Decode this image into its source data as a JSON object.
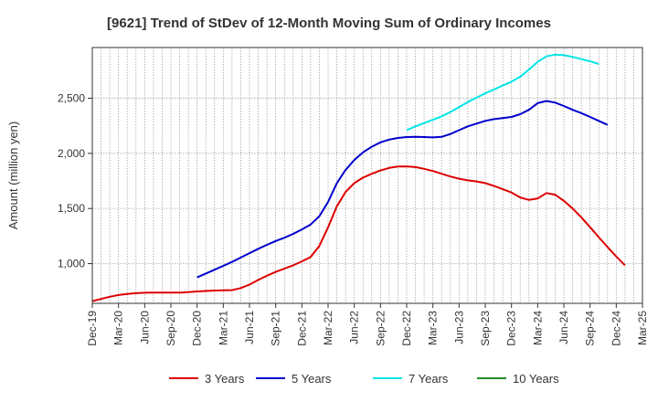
{
  "chart_data": {
    "type": "line",
    "title": "[9621]  Trend of StDev of 12-Month Moving Sum of Ordinary Incomes",
    "ylabel": "Amount (million yen)",
    "xlabel": "",
    "ylim": [
      640,
      2960
    ],
    "yticks": [
      1000,
      1500,
      2000,
      2500
    ],
    "ytick_labels": [
      "1,000",
      "1,500",
      "2,000",
      "2,500"
    ],
    "xtick_labels": [
      "Dec-19",
      "Mar-20",
      "Jun-20",
      "Sep-20",
      "Dec-20",
      "Mar-21",
      "Jun-21",
      "Sep-21",
      "Dec-21",
      "Mar-22",
      "Jun-22",
      "Sep-22",
      "Dec-22",
      "Mar-23",
      "Jun-23",
      "Sep-23",
      "Dec-23",
      "Mar-24",
      "Jun-24",
      "Sep-24",
      "Dec-24",
      "Mar-25"
    ],
    "grid": true,
    "legend_position": "bottom",
    "series": [
      {
        "name": "3 Years",
        "color": "#dd0000",
        "start_index": 0,
        "values": [
          660,
          680,
          700,
          715,
          725,
          732,
          736,
          738,
          738,
          737,
          738,
          742,
          748,
          752,
          756,
          758,
          760,
          778,
          810,
          852,
          890,
          925,
          955,
          985,
          1020,
          1060,
          1160,
          1330,
          1520,
          1650,
          1730,
          1780,
          1815,
          1845,
          1868,
          1880,
          1882,
          1875,
          1860,
          1840,
          1815,
          1790,
          1770,
          1755,
          1745,
          1730,
          1705,
          1675,
          1645,
          1600,
          1578,
          1590,
          1640,
          1625,
          1570,
          1500,
          1420,
          1330,
          1240,
          1150,
          1065,
          985
        ]
      },
      {
        "name": "5 Years",
        "color": "#0000cc",
        "start_index": 12,
        "values": [
          875,
          910,
          945,
          980,
          1015,
          1055,
          1095,
          1135,
          1170,
          1205,
          1235,
          1270,
          1310,
          1355,
          1430,
          1560,
          1730,
          1850,
          1940,
          2010,
          2060,
          2100,
          2125,
          2140,
          2148,
          2150,
          2148,
          2145,
          2150,
          2175,
          2210,
          2245,
          2270,
          2295,
          2310,
          2320,
          2330,
          2355,
          2395,
          2455,
          2475,
          2460,
          2430,
          2395,
          2365,
          2330,
          2295,
          2258
        ]
      },
      {
        "name": "7 Years",
        "color": "#00e5e5",
        "start_index": 36,
        "values": [
          2210,
          2245,
          2275,
          2305,
          2335,
          2375,
          2420,
          2465,
          2505,
          2545,
          2580,
          2615,
          2650,
          2695,
          2760,
          2830,
          2880,
          2895,
          2890,
          2875,
          2855,
          2835,
          2810
        ]
      },
      {
        "name": "10 Years",
        "color": "#228b22",
        "start_index": 0,
        "values": []
      }
    ]
  }
}
